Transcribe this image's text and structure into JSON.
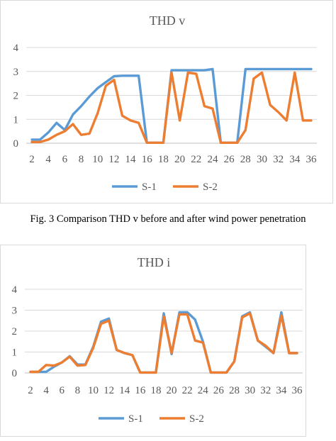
{
  "chart_data": [
    {
      "type": "line",
      "title": "THD v",
      "xlabel": "",
      "ylabel": "",
      "ylim": [
        0,
        4
      ],
      "yticks": [
        0,
        1,
        2,
        3,
        4
      ],
      "x": [
        2,
        3,
        4,
        5,
        6,
        7,
        8,
        9,
        10,
        11,
        12,
        13,
        14,
        15,
        16,
        17,
        18,
        19,
        20,
        21,
        22,
        23,
        24,
        25,
        26,
        27,
        28,
        29,
        30,
        31,
        32,
        33,
        34,
        35,
        36
      ],
      "xtick_labels": [
        "2",
        "4",
        "6",
        "8",
        "10",
        "12",
        "14",
        "16",
        "18",
        "20",
        "22",
        "24",
        "26",
        "28",
        "30",
        "32",
        "34",
        "36"
      ],
      "grid": true,
      "legend": "bottom",
      "series": [
        {
          "name": "S-1",
          "color": "#5b9bd5",
          "values": [
            0.15,
            0.15,
            0.45,
            0.85,
            0.55,
            1.2,
            1.55,
            1.95,
            2.3,
            2.55,
            2.8,
            2.82,
            2.82,
            2.82,
            0.02,
            0.02,
            0.02,
            3.05,
            3.05,
            3.05,
            3.05,
            3.05,
            3.1,
            0.02,
            0.02,
            0.02,
            3.1,
            3.1,
            3.1,
            3.1,
            3.1,
            3.1,
            3.1,
            3.1,
            3.1
          ]
        },
        {
          "name": "S-2",
          "color": "#ed7d31",
          "values": [
            0.05,
            0.05,
            0.15,
            0.35,
            0.5,
            0.8,
            0.35,
            0.4,
            1.25,
            2.4,
            2.65,
            1.15,
            0.95,
            0.85,
            0.02,
            0.02,
            0.02,
            2.95,
            0.95,
            2.95,
            2.9,
            1.55,
            1.45,
            0.02,
            0.02,
            0.02,
            0.55,
            2.7,
            2.95,
            1.6,
            1.3,
            0.95,
            2.95,
            0.95,
            0.95
          ]
        }
      ]
    },
    {
      "type": "line",
      "title": "THD i",
      "xlabel": "",
      "ylabel": "",
      "ylim": [
        0,
        4
      ],
      "yticks": [
        0,
        1,
        2,
        3,
        4
      ],
      "x": [
        2,
        3,
        4,
        5,
        6,
        7,
        8,
        9,
        10,
        11,
        12,
        13,
        14,
        15,
        16,
        17,
        18,
        19,
        20,
        21,
        22,
        23,
        24,
        25,
        26,
        27,
        28,
        29,
        30,
        31,
        32,
        33,
        34,
        35,
        36
      ],
      "xtick_labels": [
        "2",
        "4",
        "6",
        "8",
        "10",
        "12",
        "14",
        "16",
        "18",
        "20",
        "22",
        "24",
        "26",
        "28",
        "30",
        "32",
        "34",
        "36"
      ],
      "grid": true,
      "legend": "bottom",
      "series": [
        {
          "name": "S-1",
          "color": "#5b9bd5",
          "values": [
            0.05,
            0.05,
            0.05,
            0.3,
            0.5,
            0.8,
            0.4,
            0.4,
            1.25,
            2.45,
            2.6,
            1.1,
            0.95,
            0.85,
            0.02,
            0.02,
            0.02,
            2.85,
            0.9,
            2.9,
            2.9,
            2.55,
            1.5,
            0.02,
            0.02,
            0.02,
            0.55,
            2.7,
            2.9,
            1.55,
            1.25,
            0.95,
            2.9,
            0.95,
            0.95
          ]
        },
        {
          "name": "S-2",
          "color": "#ed7d31",
          "values": [
            0.05,
            0.05,
            0.38,
            0.35,
            0.5,
            0.78,
            0.35,
            0.38,
            1.2,
            2.35,
            2.5,
            1.1,
            0.95,
            0.85,
            0.02,
            0.02,
            0.02,
            2.7,
            0.95,
            2.8,
            2.8,
            1.55,
            1.45,
            0.02,
            0.02,
            0.02,
            0.55,
            2.65,
            2.85,
            1.55,
            1.3,
            0.95,
            2.75,
            0.95,
            0.95
          ]
        }
      ]
    }
  ],
  "caption": "Fig. 3 Comparison THD v before and after wind power penetration"
}
